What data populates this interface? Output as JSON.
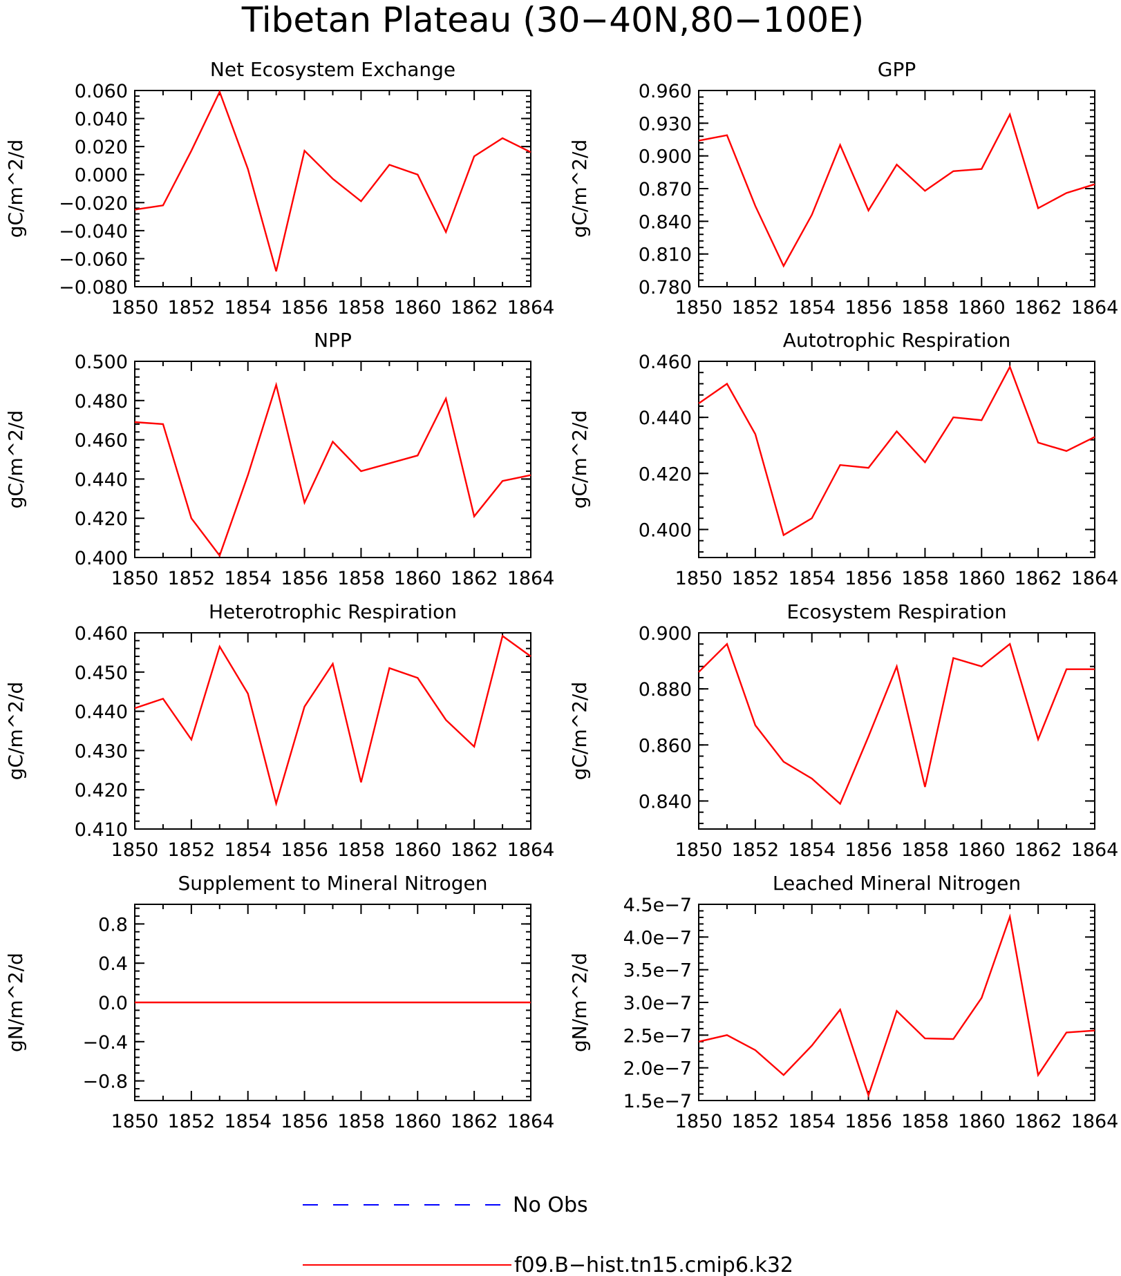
{
  "figure_title": "Tibetan Plateau (30−40N,80−100E)",
  "legend": {
    "items": [
      {
        "label": "No Obs",
        "color": "#0000ff",
        "style": "dashed"
      },
      {
        "label": "f09.B−hist.tn15.cmip6.k32",
        "color": "#ff0000",
        "style": "solid"
      }
    ]
  },
  "chart_data": [
    {
      "type": "line",
      "title": "Net Ecosystem Exchange",
      "ylabel": "gC/m^2/d",
      "xlim": [
        1850,
        1864
      ],
      "ylim": [
        -0.08,
        0.06
      ],
      "yticks": [
        -0.08,
        -0.06,
        -0.04,
        -0.02,
        0.0,
        0.02,
        0.04,
        0.06
      ],
      "ytick_labels": [
        "−0.080",
        "−0.060",
        "−0.040",
        "−0.020",
        "0.000",
        "0.020",
        "0.040",
        "0.060"
      ],
      "xticks": [
        1850,
        1852,
        1854,
        1856,
        1858,
        1860,
        1862,
        1864
      ],
      "xtick_labels": [
        "1850",
        "1852",
        "1854",
        "1856",
        "1858",
        "1860",
        "1862",
        "1864"
      ],
      "series": [
        {
          "color": "#ff0000",
          "x": [
            1850,
            1851,
            1852,
            1853,
            1854,
            1855,
            1856,
            1857,
            1858,
            1859,
            1860,
            1861,
            1862,
            1863,
            1864
          ],
          "values": [
            -0.025,
            -0.022,
            0.017,
            0.059,
            0.004,
            -0.069,
            0.017,
            -0.003,
            -0.019,
            0.007,
            0.0,
            -0.041,
            0.013,
            0.026,
            0.016
          ]
        }
      ]
    },
    {
      "type": "line",
      "title": "GPP",
      "ylabel": "gC/m^2/d",
      "xlim": [
        1850,
        1864
      ],
      "ylim": [
        0.78,
        0.96
      ],
      "yticks": [
        0.78,
        0.81,
        0.84,
        0.87,
        0.9,
        0.93,
        0.96
      ],
      "ytick_labels": [
        "0.780",
        "0.810",
        "0.840",
        "0.870",
        "0.900",
        "0.930",
        "0.960"
      ],
      "xticks": [
        1850,
        1852,
        1854,
        1856,
        1858,
        1860,
        1862,
        1864
      ],
      "xtick_labels": [
        "1850",
        "1852",
        "1854",
        "1856",
        "1858",
        "1860",
        "1862",
        "1864"
      ],
      "series": [
        {
          "color": "#ff0000",
          "x": [
            1850,
            1851,
            1852,
            1853,
            1854,
            1855,
            1856,
            1857,
            1858,
            1859,
            1860,
            1861,
            1862,
            1863,
            1864
          ],
          "values": [
            0.914,
            0.919,
            0.854,
            0.799,
            0.846,
            0.91,
            0.85,
            0.892,
            0.868,
            0.886,
            0.888,
            0.938,
            0.852,
            0.866,
            0.874
          ]
        }
      ]
    },
    {
      "type": "line",
      "title": "NPP",
      "ylabel": "gC/m^2/d",
      "xlim": [
        1850,
        1864
      ],
      "ylim": [
        0.4,
        0.5
      ],
      "yticks": [
        0.4,
        0.42,
        0.44,
        0.46,
        0.48,
        0.5
      ],
      "ytick_labels": [
        "0.400",
        "0.420",
        "0.440",
        "0.460",
        "0.480",
        "0.500"
      ],
      "xticks": [
        1850,
        1852,
        1854,
        1856,
        1858,
        1860,
        1862,
        1864
      ],
      "xtick_labels": [
        "1850",
        "1852",
        "1854",
        "1856",
        "1858",
        "1860",
        "1862",
        "1864"
      ],
      "series": [
        {
          "color": "#ff0000",
          "x": [
            1850,
            1851,
            1852,
            1853,
            1854,
            1855,
            1856,
            1857,
            1858,
            1859,
            1860,
            1861,
            1862,
            1863,
            1864
          ],
          "values": [
            0.469,
            0.468,
            0.42,
            0.401,
            0.442,
            0.488,
            0.428,
            0.459,
            0.444,
            0.448,
            0.452,
            0.481,
            0.421,
            0.439,
            0.442
          ]
        }
      ]
    },
    {
      "type": "line",
      "title": "Autotrophic Respiration",
      "ylabel": "gC/m^2/d",
      "xlim": [
        1850,
        1864
      ],
      "ylim": [
        0.39,
        0.46
      ],
      "yticks": [
        0.4,
        0.42,
        0.44,
        0.46
      ],
      "ytick_labels": [
        "0.400",
        "0.420",
        "0.440",
        "0.460"
      ],
      "xticks": [
        1850,
        1852,
        1854,
        1856,
        1858,
        1860,
        1862,
        1864
      ],
      "xtick_labels": [
        "1850",
        "1852",
        "1854",
        "1856",
        "1858",
        "1860",
        "1862",
        "1864"
      ],
      "series": [
        {
          "color": "#ff0000",
          "x": [
            1850,
            1851,
            1852,
            1853,
            1854,
            1855,
            1856,
            1857,
            1858,
            1859,
            1860,
            1861,
            1862,
            1863,
            1864
          ],
          "values": [
            0.445,
            0.452,
            0.434,
            0.398,
            0.404,
            0.423,
            0.422,
            0.435,
            0.424,
            0.44,
            0.439,
            0.458,
            0.431,
            0.428,
            0.433
          ]
        }
      ]
    },
    {
      "type": "line",
      "title": "Heterotrophic Respiration",
      "ylabel": "gC/m^2/d",
      "xlim": [
        1850,
        1864
      ],
      "ylim": [
        0.41,
        0.46
      ],
      "yticks": [
        0.41,
        0.42,
        0.43,
        0.44,
        0.45,
        0.46
      ],
      "ytick_labels": [
        "0.410",
        "0.420",
        "0.430",
        "0.440",
        "0.450",
        "0.460"
      ],
      "xticks": [
        1850,
        1852,
        1854,
        1856,
        1858,
        1860,
        1862,
        1864
      ],
      "xtick_labels": [
        "1850",
        "1852",
        "1854",
        "1856",
        "1858",
        "1860",
        "1862",
        "1864"
      ],
      "series": [
        {
          "color": "#ff0000",
          "x": [
            1850,
            1851,
            1852,
            1853,
            1854,
            1855,
            1856,
            1857,
            1858,
            1859,
            1860,
            1861,
            1862,
            1863,
            1864
          ],
          "values": [
            0.4408,
            0.4432,
            0.4328,
            0.4565,
            0.4445,
            0.4165,
            0.4412,
            0.4521,
            0.4219,
            0.451,
            0.4485,
            0.4378,
            0.431,
            0.4592,
            0.454
          ]
        }
      ]
    },
    {
      "type": "line",
      "title": "Ecosystem Respiration",
      "ylabel": "gC/m^2/d",
      "xlim": [
        1850,
        1864
      ],
      "ylim": [
        0.83,
        0.9
      ],
      "yticks": [
        0.84,
        0.86,
        0.88,
        0.9
      ],
      "ytick_labels": [
        "0.840",
        "0.860",
        "0.880",
        "0.900"
      ],
      "xticks": [
        1850,
        1852,
        1854,
        1856,
        1858,
        1860,
        1862,
        1864
      ],
      "xtick_labels": [
        "1850",
        "1852",
        "1854",
        "1856",
        "1858",
        "1860",
        "1862",
        "1864"
      ],
      "series": [
        {
          "color": "#ff0000",
          "x": [
            1850,
            1851,
            1852,
            1853,
            1854,
            1855,
            1856,
            1857,
            1858,
            1859,
            1860,
            1861,
            1862,
            1863,
            1864
          ],
          "values": [
            0.886,
            0.896,
            0.867,
            0.854,
            0.848,
            0.839,
            0.863,
            0.888,
            0.845,
            0.891,
            0.888,
            0.896,
            0.862,
            0.887,
            0.887
          ]
        }
      ]
    },
    {
      "type": "line",
      "title": "Supplement to Mineral Nitrogen",
      "ylabel": "gN/m^2/d",
      "xlim": [
        1850,
        1864
      ],
      "ylim": [
        -1.0,
        1.0
      ],
      "yticks": [
        -0.8,
        -0.4,
        0.0,
        0.4,
        0.8
      ],
      "ytick_labels": [
        "−0.8",
        "−0.4",
        "0.0",
        "0.4",
        "0.8"
      ],
      "xticks": [
        1850,
        1852,
        1854,
        1856,
        1858,
        1860,
        1862,
        1864
      ],
      "xtick_labels": [
        "1850",
        "1852",
        "1854",
        "1856",
        "1858",
        "1860",
        "1862",
        "1864"
      ],
      "series": [
        {
          "color": "#ff0000",
          "x": [
            1850,
            1851,
            1852,
            1853,
            1854,
            1855,
            1856,
            1857,
            1858,
            1859,
            1860,
            1861,
            1862,
            1863,
            1864
          ],
          "values": [
            0,
            0,
            0,
            0,
            0,
            0,
            0,
            0,
            0,
            0,
            0,
            0,
            0,
            0,
            0
          ]
        }
      ]
    },
    {
      "type": "line",
      "title": "Leached Mineral Nitrogen",
      "ylabel": "gN/m^2/d",
      "xlim": [
        1850,
        1864
      ],
      "ylim": [
        1.5e-07,
        4.5e-07
      ],
      "yticks": [
        1.5e-07,
        2e-07,
        2.5e-07,
        3e-07,
        3.5e-07,
        4e-07,
        4.5e-07
      ],
      "ytick_labels": [
        "1.5e−7",
        "2.0e−7",
        "2.5e−7",
        "3.0e−7",
        "3.5e−7",
        "4.0e−7",
        "4.5e−7"
      ],
      "xticks": [
        1850,
        1852,
        1854,
        1856,
        1858,
        1860,
        1862,
        1864
      ],
      "xtick_labels": [
        "1850",
        "1852",
        "1854",
        "1856",
        "1858",
        "1860",
        "1862",
        "1864"
      ],
      "series": [
        {
          "color": "#ff0000",
          "x": [
            1850,
            1851,
            1852,
            1853,
            1854,
            1855,
            1856,
            1857,
            1858,
            1859,
            1860,
            1861,
            1862,
            1863,
            1864
          ],
          "values": [
            2.4e-07,
            2.5e-07,
            2.27e-07,
            1.89e-07,
            2.34e-07,
            2.89e-07,
            1.58e-07,
            2.87e-07,
            2.45e-07,
            2.44e-07,
            3.07e-07,
            4.31e-07,
            1.89e-07,
            2.54e-07,
            2.57e-07
          ]
        }
      ]
    }
  ]
}
